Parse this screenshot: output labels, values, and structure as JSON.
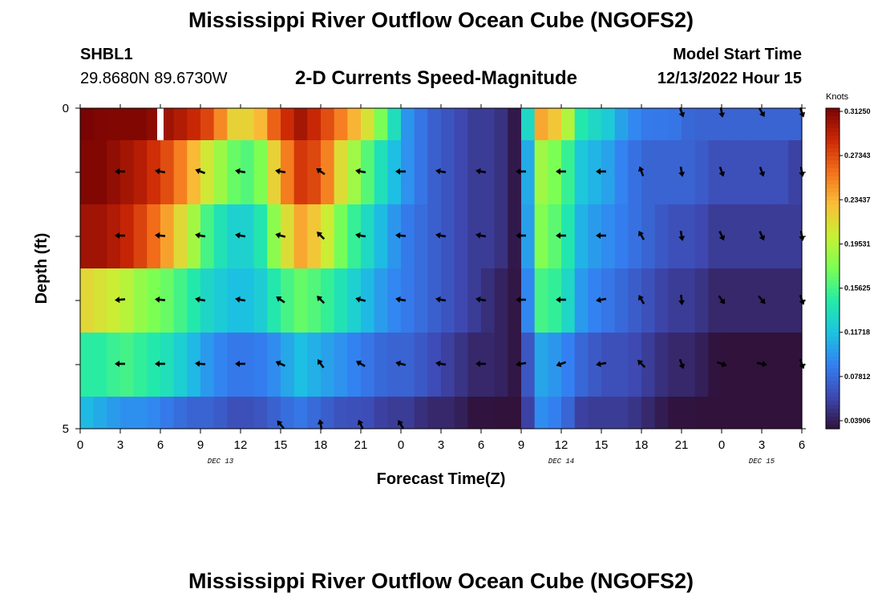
{
  "header": {
    "title": "Mississippi River Outflow Ocean Cube (NGOFS2)",
    "station_id": "SHBL1",
    "coordinates": "29.8680N  89.6730W",
    "subtitle": "2-D Currents Speed-Magnitude",
    "model_start_label": "Model Start Time",
    "model_start_value": "12/13/2022 Hour 15"
  },
  "footer": {
    "title": "Mississippi River Outflow Ocean Cube (NGOFS2)"
  },
  "chart_data": {
    "type": "heatmap",
    "title": "2-D Currents Speed-Magnitude",
    "xlabel": "Forecast Time(Z)",
    "ylabel": "Depth (ft)",
    "x_start": "12/13/2022 00Z",
    "x_step_hours": 3,
    "x_ticks": [
      "0",
      "3",
      "6",
      "9",
      "12",
      "15",
      "18",
      "21",
      "0",
      "3",
      "6",
      "9",
      "12",
      "15",
      "18",
      "21",
      "0",
      "3",
      "6"
    ],
    "date_labels": [
      {
        "text": "DEC 13",
        "tick_index": 3.5
      },
      {
        "text": "DEC 14",
        "tick_index": 12
      },
      {
        "text": "DEC 15",
        "tick_index": 17
      }
    ],
    "y_ticks": [
      "0",
      "5"
    ],
    "ylim": [
      0,
      5
    ],
    "depth_layers_ft": [
      0,
      1,
      2,
      3,
      4,
      5
    ],
    "colorbar": {
      "unit": "Knots",
      "labels": [
        "0.31250",
        "0.27343",
        "0.23437",
        "0.19531",
        "0.15625",
        "0.11718",
        "0.07812",
        "0.03906"
      ],
      "min": 0.03906,
      "max": 0.3125
    },
    "missing_cell": {
      "hour": 6,
      "layer": 0
    },
    "speed_knots": [
      [
        0.32,
        0.31,
        0.31,
        0.31,
        0.3,
        0.29,
        0.27,
        0.22,
        0.22,
        0.27,
        0.3,
        0.28,
        0.25,
        0.22,
        0.16,
        0.1,
        0.08,
        0.07,
        0.06,
        0.06,
        0.04,
        0.24,
        0.22,
        0.14,
        0.13,
        0.1,
        0.09,
        0.09,
        0.08,
        0.08,
        0.08,
        0.08,
        0.08,
        0.08
      ],
      [
        0.31,
        0.31,
        0.3,
        0.29,
        0.27,
        0.24,
        0.2,
        0.17,
        0.16,
        0.23,
        0.28,
        0.27,
        0.21,
        0.17,
        0.13,
        0.1,
        0.08,
        0.07,
        0.06,
        0.06,
        0.04,
        0.19,
        0.17,
        0.12,
        0.11,
        0.09,
        0.08,
        0.08,
        0.08,
        0.07,
        0.07,
        0.07,
        0.07,
        0.06
      ],
      [
        0.3,
        0.3,
        0.29,
        0.27,
        0.24,
        0.2,
        0.15,
        0.13,
        0.13,
        0.19,
        0.24,
        0.22,
        0.17,
        0.14,
        0.11,
        0.09,
        0.08,
        0.07,
        0.06,
        0.06,
        0.04,
        0.18,
        0.16,
        0.11,
        0.1,
        0.09,
        0.08,
        0.07,
        0.07,
        0.06,
        0.06,
        0.06,
        0.06,
        0.06
      ],
      [
        0.22,
        0.21,
        0.2,
        0.18,
        0.17,
        0.15,
        0.13,
        0.12,
        0.12,
        0.15,
        0.17,
        0.16,
        0.14,
        0.12,
        0.1,
        0.09,
        0.08,
        0.07,
        0.06,
        0.05,
        0.04,
        0.16,
        0.15,
        0.1,
        0.09,
        0.08,
        0.07,
        0.06,
        0.06,
        0.05,
        0.05,
        0.05,
        0.05,
        0.05
      ],
      [
        0.15,
        0.15,
        0.16,
        0.15,
        0.14,
        0.12,
        0.1,
        0.09,
        0.09,
        0.1,
        0.12,
        0.11,
        0.1,
        0.09,
        0.08,
        0.08,
        0.07,
        0.06,
        0.05,
        0.05,
        0.04,
        0.11,
        0.1,
        0.08,
        0.07,
        0.07,
        0.06,
        0.05,
        0.05,
        0.04,
        0.03,
        0.03,
        0.03,
        0.03
      ],
      [
        0.12,
        0.11,
        0.1,
        0.1,
        0.09,
        0.08,
        0.08,
        0.07,
        0.07,
        0.08,
        0.09,
        0.08,
        0.07,
        0.07,
        0.06,
        0.06,
        0.05,
        0.05,
        0.04,
        0.04,
        0.03,
        0.1,
        0.09,
        0.06,
        0.06,
        0.06,
        0.05,
        0.04,
        0.04,
        0.03,
        0.03,
        0.03,
        0.02,
        0.02
      ]
    ],
    "arrow_hours": [
      3,
      6,
      9,
      12,
      15,
      18,
      21,
      24,
      27,
      30,
      33,
      36,
      39,
      42,
      45,
      48,
      51,
      54
    ],
    "arrow_depths_ft": [
      0,
      1,
      2,
      3,
      4,
      5
    ],
    "arrow_direction_deg": [
      [
        null,
        null,
        null,
        null,
        null,
        null,
        null,
        null,
        null,
        null,
        null,
        null,
        null,
        null,
        160,
        170,
        150,
        160
      ],
      [
        -90,
        -80,
        -70,
        -80,
        -80,
        -55,
        -80,
        -90,
        -80,
        -80,
        -90,
        -90,
        -90,
        -20,
        170,
        160,
        160,
        170
      ],
      [
        -90,
        -85,
        -80,
        -80,
        -75,
        -45,
        -80,
        -85,
        -80,
        -80,
        -90,
        -90,
        -90,
        -30,
        170,
        155,
        155,
        170
      ],
      [
        -95,
        -85,
        -80,
        -80,
        -55,
        -45,
        -75,
        -80,
        -80,
        -80,
        -90,
        -90,
        -100,
        -30,
        175,
        145,
        140,
        160
      ],
      [
        -90,
        -90,
        -85,
        -90,
        -65,
        -35,
        -60,
        -75,
        -80,
        -90,
        -100,
        -110,
        -100,
        -45,
        160,
        110,
        100,
        160
      ],
      [
        null,
        null,
        null,
        null,
        -40,
        -10,
        -25,
        -30,
        null,
        null,
        null,
        null,
        null,
        null,
        null,
        null,
        null,
        null
      ]
    ]
  }
}
